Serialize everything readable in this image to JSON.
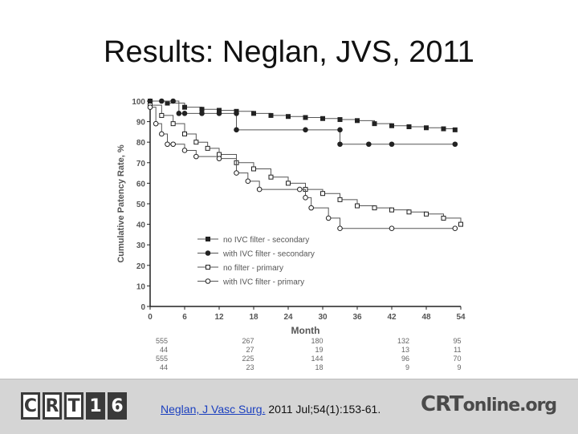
{
  "slide": {
    "title": "Results: Neglan, JVS, 2011"
  },
  "footer": {
    "crt_letters": [
      "C",
      "R",
      "T",
      "1",
      "6"
    ],
    "citation_link": "Neglan, J Vasc Surg.",
    "citation_rest": " 2011 Jul;54(1):153-61.",
    "crtonline_main": "CRT",
    "crtonline_rest": "online.org"
  },
  "chart_data": {
    "type": "line",
    "title": "",
    "xlabel": "Month",
    "ylabel": "Cumulative Patency Rate, %",
    "xlim": [
      0,
      54
    ],
    "ylim": [
      0,
      100
    ],
    "xticks": [
      "0",
      "6",
      "12",
      "18",
      "24",
      "30",
      "36",
      "42",
      "48",
      "54"
    ],
    "yticks": [
      "0",
      "10",
      "20",
      "30",
      "40",
      "50",
      "60",
      "70",
      "80",
      "90",
      "100"
    ],
    "grid": false,
    "legend_position": "bottom-left",
    "series": [
      {
        "name": "no IVC filter -  secondary",
        "marker": "square-filled",
        "x": [
          0,
          3,
          6,
          9,
          12,
          15,
          18,
          21,
          24,
          27,
          30,
          33,
          36,
          39,
          42,
          45,
          48,
          51,
          53
        ],
        "y": [
          100,
          99,
          97,
          96,
          95.5,
          95,
          94,
          93,
          92.5,
          92,
          91.5,
          91,
          90.5,
          89,
          88,
          87.5,
          87,
          86.5,
          86
        ]
      },
      {
        "name": "with IVC filter - secondary",
        "marker": "circle-filled",
        "x": [
          0,
          2,
          4,
          5,
          6,
          9,
          12,
          15,
          15,
          27,
          33,
          33,
          38,
          42,
          53
        ],
        "y": [
          100,
          100,
          100,
          94,
          94,
          94,
          94,
          94,
          86,
          86,
          86,
          79,
          79,
          79,
          79
        ]
      },
      {
        "name": "no filter -  primary",
        "marker": "square-open",
        "x": [
          0,
          2,
          4,
          6,
          8,
          10,
          12,
          15,
          18,
          21,
          24,
          27,
          30,
          33,
          36,
          39,
          42,
          45,
          48,
          51,
          54
        ],
        "y": [
          98,
          93,
          89,
          84,
          80,
          77,
          74,
          70,
          67,
          63,
          60,
          57,
          55,
          52,
          49,
          48,
          47,
          46,
          45,
          43,
          40
        ]
      },
      {
        "name": "with IVC filter - primary",
        "marker": "circle-open",
        "x": [
          0,
          1,
          2,
          3,
          4,
          6,
          8,
          12,
          15,
          17,
          19,
          26,
          27,
          28,
          31,
          33,
          42,
          53
        ],
        "y": [
          97,
          89,
          84,
          79,
          79,
          76,
          73,
          72,
          65,
          61,
          57,
          57,
          53,
          48,
          43,
          38,
          38,
          38
        ]
      }
    ],
    "risk_table": {
      "x": [
        0,
        15,
        27,
        42,
        51
      ],
      "rows": [
        [
          "555",
          "267",
          "180",
          "132",
          "95"
        ],
        [
          "44",
          "27",
          "19",
          "13",
          "11"
        ],
        [
          "555",
          "225",
          "144",
          "96",
          "70"
        ],
        [
          "44",
          "23",
          "18",
          "9",
          "9"
        ]
      ]
    }
  }
}
